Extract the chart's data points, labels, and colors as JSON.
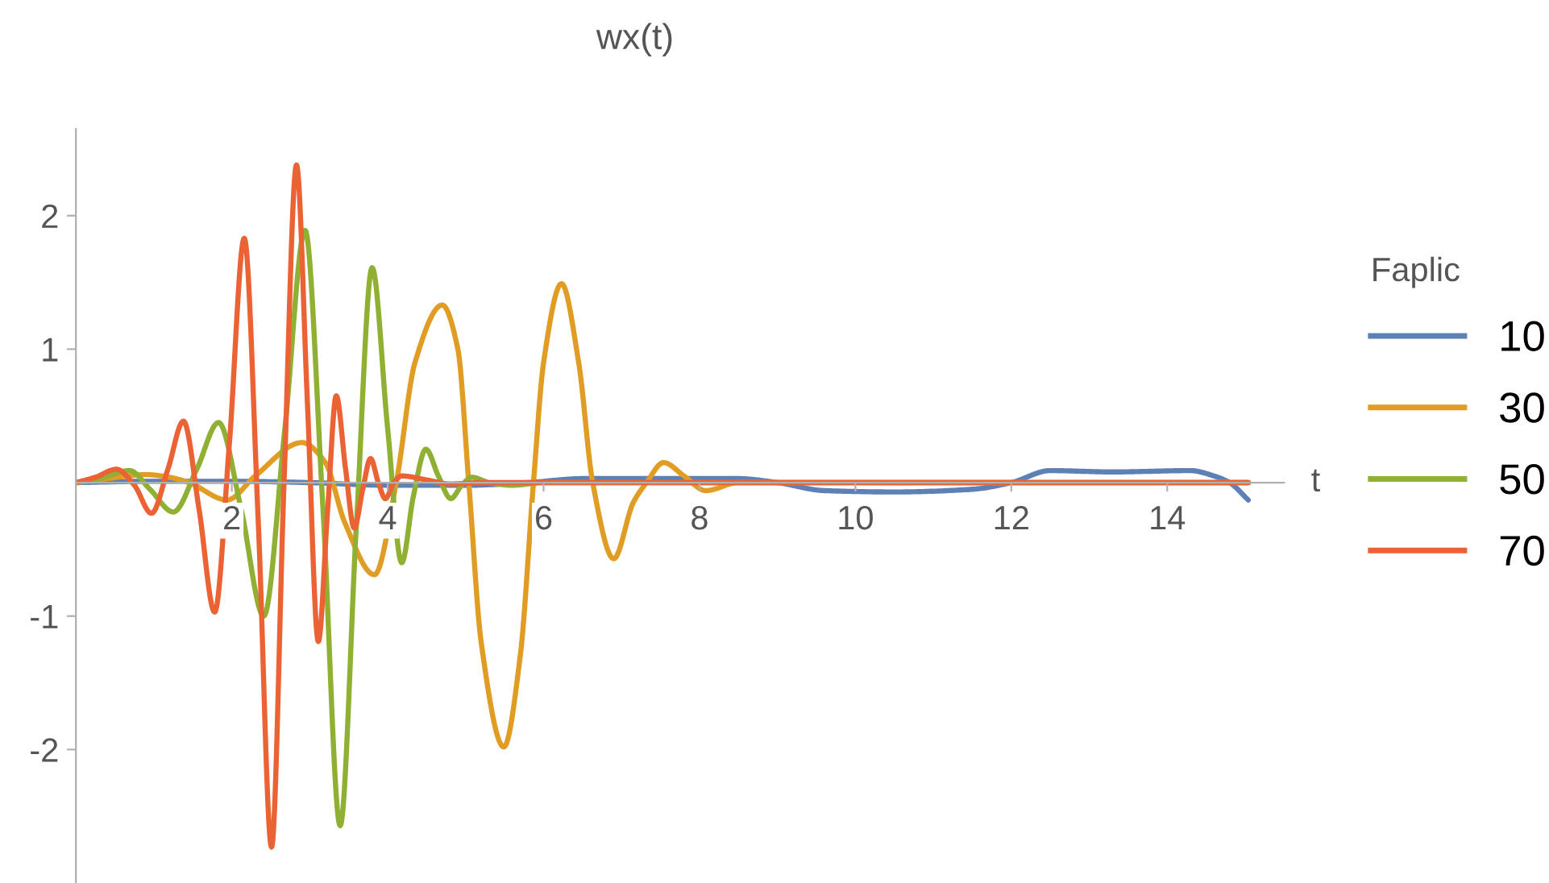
{
  "chart_data": {
    "type": "line",
    "title": "wx(t)",
    "xlabel": "t",
    "legend_title": "Faplic",
    "legend": "right",
    "grid": false,
    "xlim": [
      0,
      15.5
    ],
    "ylim": [
      -3,
      2.65
    ],
    "xticks": [
      2,
      4,
      6,
      8,
      10,
      12,
      14
    ],
    "yticks": [
      -2,
      -1,
      1,
      2
    ],
    "series": [
      {
        "name": "10",
        "color": "#5e81b5",
        "x": [
          0,
          1,
          2,
          3,
          4,
          5,
          5.8,
          6.5,
          7.5,
          8.5,
          9.0,
          9.6,
          10.5,
          11.5,
          12.0,
          12.5,
          13.3,
          14.3,
          14.6,
          14.8,
          15.04
        ],
        "values": [
          0,
          0.01,
          0.01,
          0.0,
          -0.02,
          -0.02,
          0,
          0.03,
          0.03,
          0.03,
          0.0,
          -0.06,
          -0.07,
          -0.05,
          0.0,
          0.09,
          0.08,
          0.09,
          0.05,
          0,
          -0.13
        ]
      },
      {
        "name": "30",
        "color": "#e19c24",
        "x": [
          0,
          0.4,
          0.9,
          1.2,
          1.45,
          1.94,
          2.3,
          2.9,
          3.2,
          3.45,
          3.83,
          4.11,
          4.35,
          4.7,
          4.9,
          5.04,
          5.2,
          5.49,
          5.7,
          5.87,
          6.0,
          6.23,
          6.45,
          6.63,
          6.9,
          7.15,
          7.32,
          7.54,
          7.8,
          8.08,
          8.5,
          15.04
        ],
        "values": [
          0,
          0.03,
          0.06,
          0.04,
          0,
          -0.13,
          0.05,
          0.3,
          0.15,
          -0.3,
          -0.69,
          0,
          0.9,
          1.33,
          1.0,
          0,
          -1.2,
          -1.98,
          -1.3,
          0,
          0.9,
          1.49,
          0.9,
          0,
          -0.57,
          -0.15,
          0,
          0.15,
          0.05,
          -0.06,
          0,
          0
        ]
      },
      {
        "name": "50",
        "color": "#8fb032",
        "x": [
          0,
          0.3,
          0.69,
          0.95,
          1.25,
          1.55,
          1.83,
          2.12,
          2.41,
          2.68,
          2.94,
          3.17,
          3.39,
          3.6,
          3.8,
          4.0,
          4.18,
          4.33,
          4.49,
          4.65,
          4.81,
          4.95,
          5.08,
          5.3,
          5.6,
          6.0,
          15.04
        ],
        "values": [
          0,
          0.03,
          0.09,
          -0.05,
          -0.22,
          0.1,
          0.45,
          -0.2,
          -1.0,
          0.4,
          1.89,
          -0.2,
          -2.57,
          -0.3,
          1.61,
          0.4,
          -0.6,
          -0.1,
          0.25,
          0.05,
          -0.12,
          -0.02,
          0.04,
          0,
          -0.02,
          0,
          0
        ]
      },
      {
        "name": "70",
        "color": "#eb6235",
        "x": [
          0,
          0.25,
          0.52,
          0.75,
          0.97,
          1.18,
          1.38,
          1.58,
          1.78,
          1.97,
          2.16,
          2.34,
          2.51,
          2.67,
          2.83,
          2.97,
          3.11,
          3.23,
          3.34,
          3.46,
          3.57,
          3.68,
          3.78,
          3.88,
          3.97,
          4.08,
          4.18,
          4.5,
          4.8,
          5.2,
          15.04
        ],
        "values": [
          0,
          0.04,
          0.1,
          -0.02,
          -0.23,
          0.1,
          0.46,
          -0.2,
          -0.97,
          0.3,
          1.83,
          -0.3,
          -2.73,
          0,
          2.38,
          0.6,
          -1.19,
          -0.2,
          0.65,
          0.1,
          -0.34,
          -0.05,
          0.18,
          0,
          -0.12,
          0,
          0.05,
          0.02,
          -0.01,
          0,
          0
        ]
      }
    ]
  }
}
